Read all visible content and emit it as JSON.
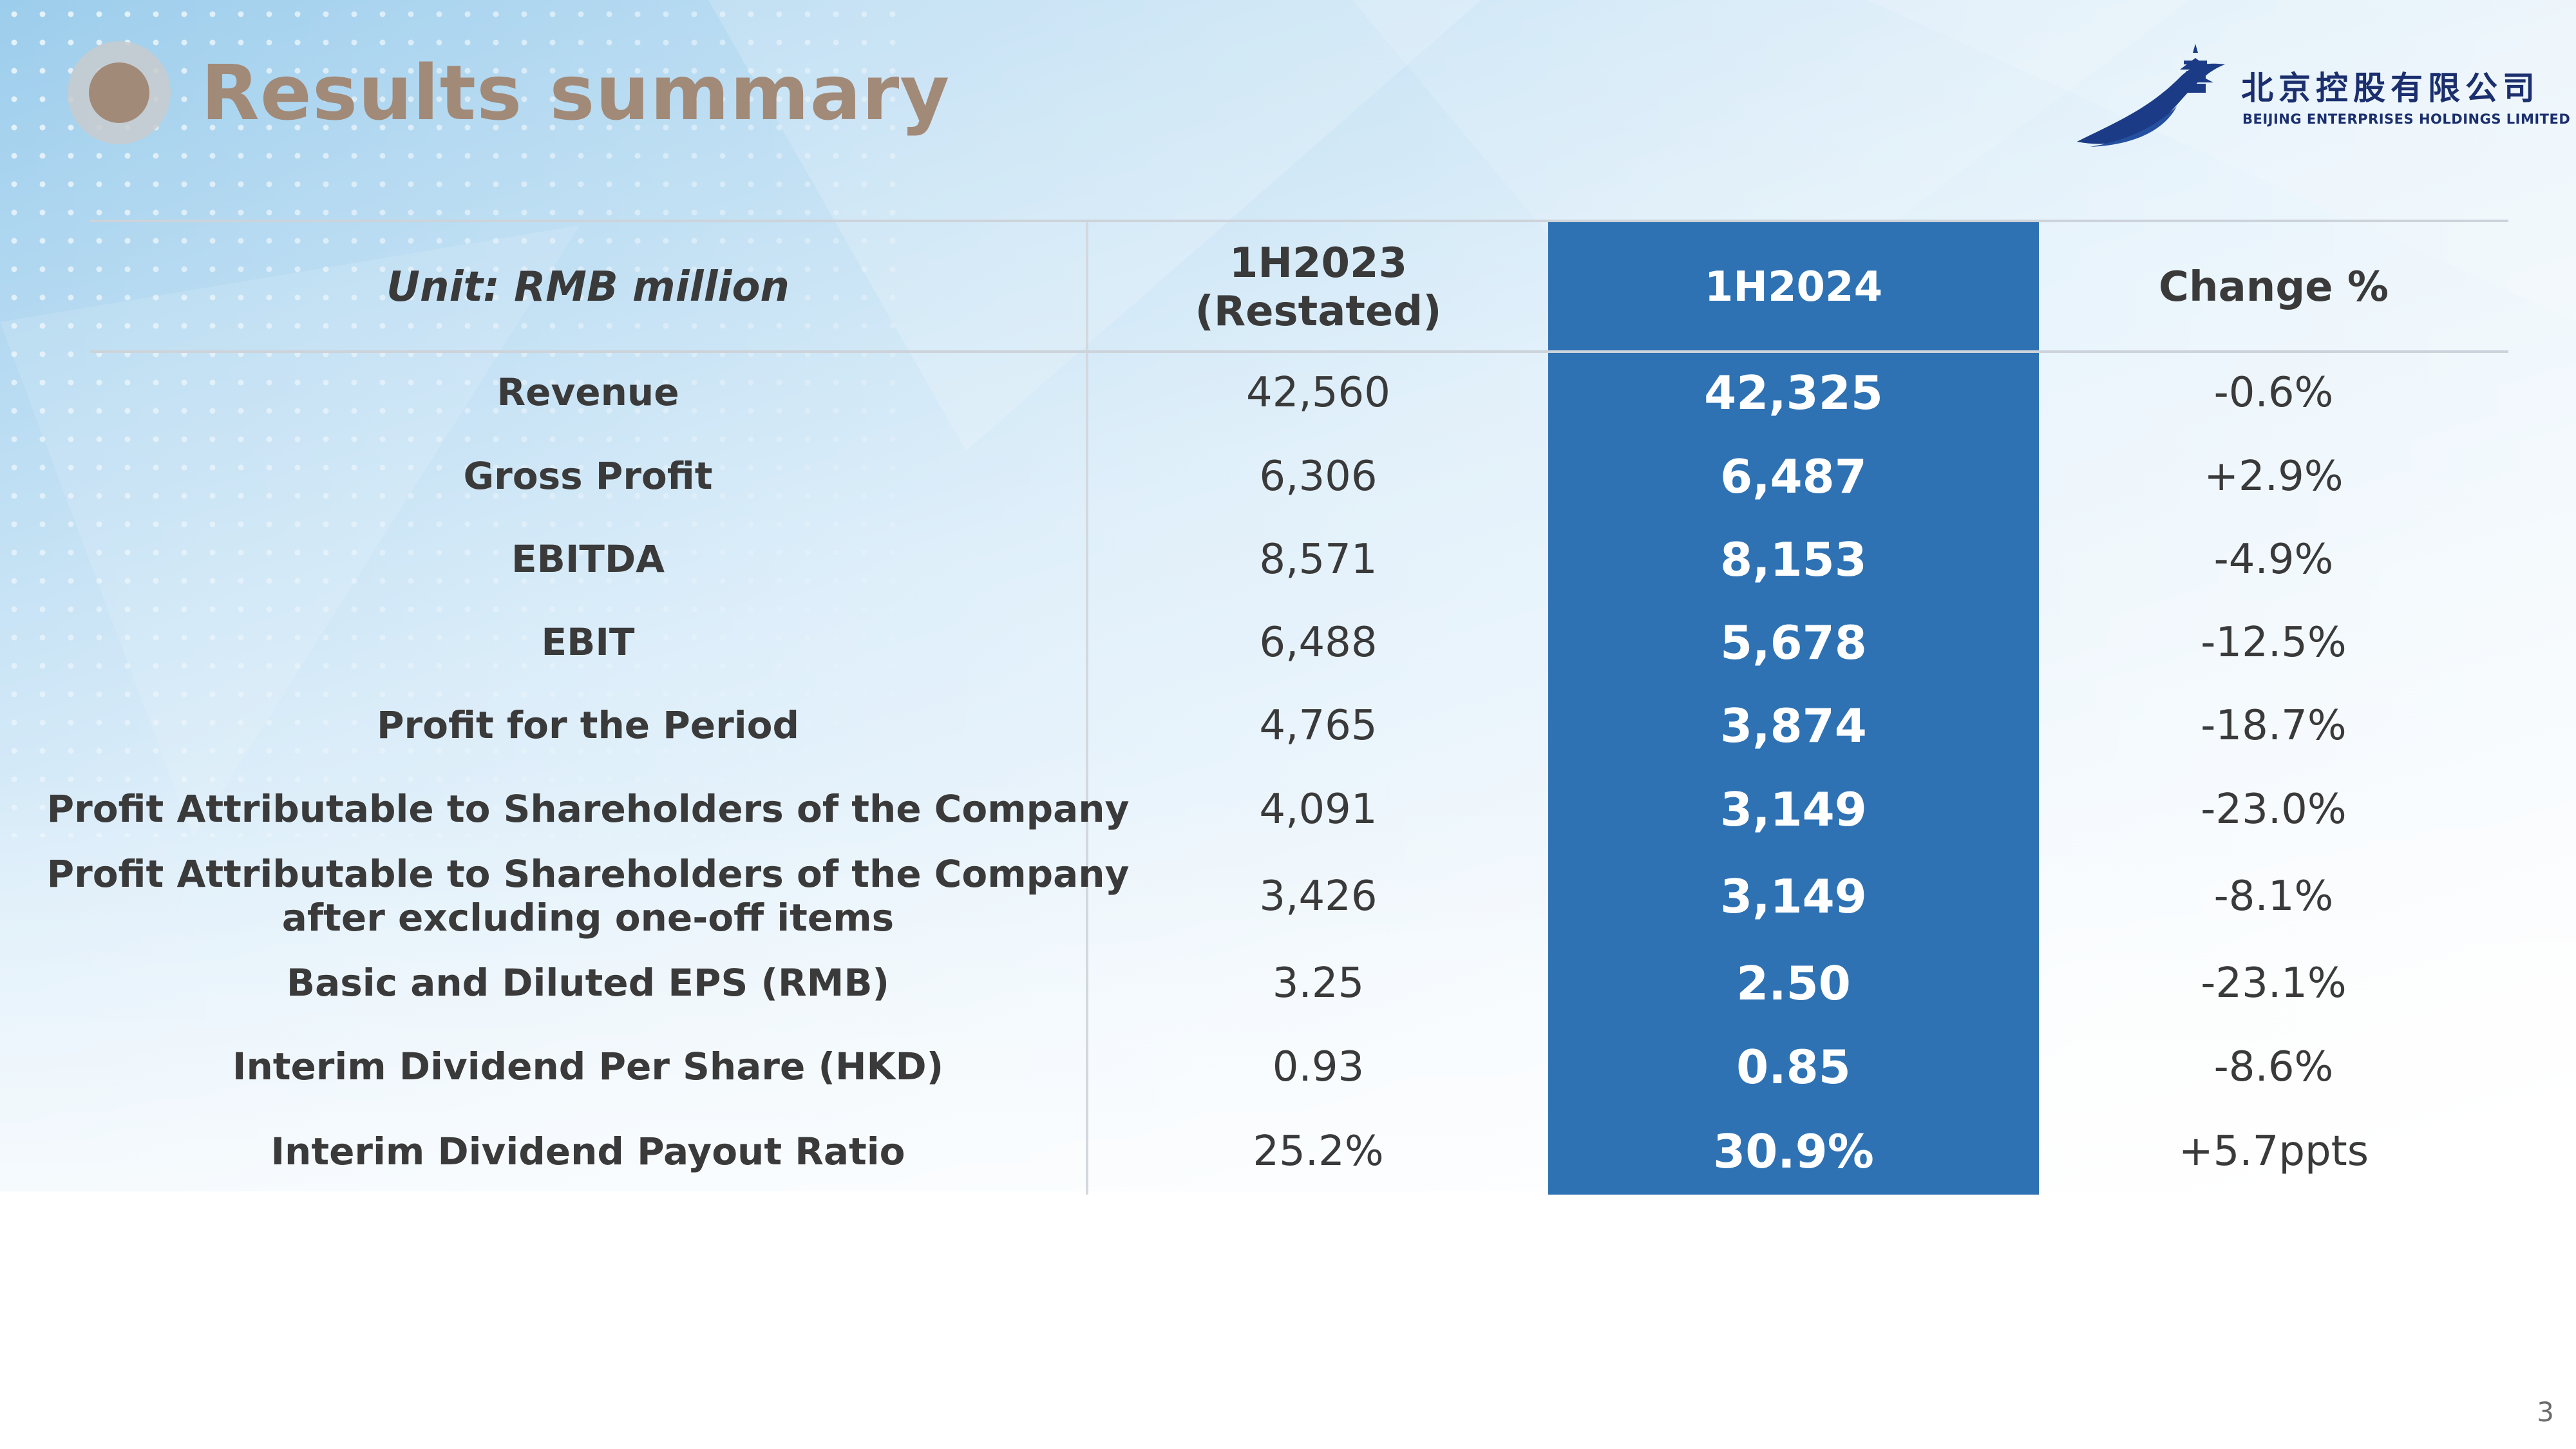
{
  "slide": {
    "title": "Results summary",
    "page_number": "3"
  },
  "logo": {
    "name_cn": "北京控股有限公司",
    "name_en": "BEIJING ENTERPRISES HOLDINGS LIMITED"
  },
  "table": {
    "header": {
      "unit": "Unit: RMB million",
      "prev_line1": "1H2023",
      "prev_line2": "(Restated)",
      "current": "1H2024",
      "change": "Change %"
    },
    "rows": [
      {
        "label": "Revenue",
        "prev": "42,560",
        "current": "42,325",
        "change": "-0.6%"
      },
      {
        "label": "Gross Profit",
        "prev": "6,306",
        "current": "6,487",
        "change": "+2.9%"
      },
      {
        "label": "EBITDA",
        "prev": "8,571",
        "current": "8,153",
        "change": "-4.9%"
      },
      {
        "label": "EBIT",
        "prev": "6,488",
        "current": "5,678",
        "change": "-12.5%"
      },
      {
        "label": "Profit for the Period",
        "prev": "4,765",
        "current": "3,874",
        "change": "-18.7%"
      },
      {
        "label": "Profit Attributable to Shareholders of the Company",
        "prev": "4,091",
        "current": "3,149",
        "change": "-23.0%"
      },
      {
        "label": "Profit Attributable to Shareholders of the Company",
        "label_line2": "after excluding one-off items",
        "prev": "3,426",
        "current": "3,149",
        "change": "-8.1%"
      },
      {
        "label": "Basic and Diluted EPS (RMB)",
        "prev": "3.25",
        "current": "2.50",
        "change": "-23.1%"
      },
      {
        "label": "Interim Dividend Per Share (HKD)",
        "prev": "0.93",
        "current": "0.85",
        "change": "-8.6%"
      },
      {
        "label": "Interim Dividend Payout Ratio",
        "prev": "25.2%",
        "current": "30.9%",
        "change": "+5.7ppts"
      }
    ]
  },
  "colors": {
    "title": "#a28a78",
    "highlight": "#2e72b4",
    "text": "#3a3a3a",
    "logo": "#1b2f6e"
  }
}
